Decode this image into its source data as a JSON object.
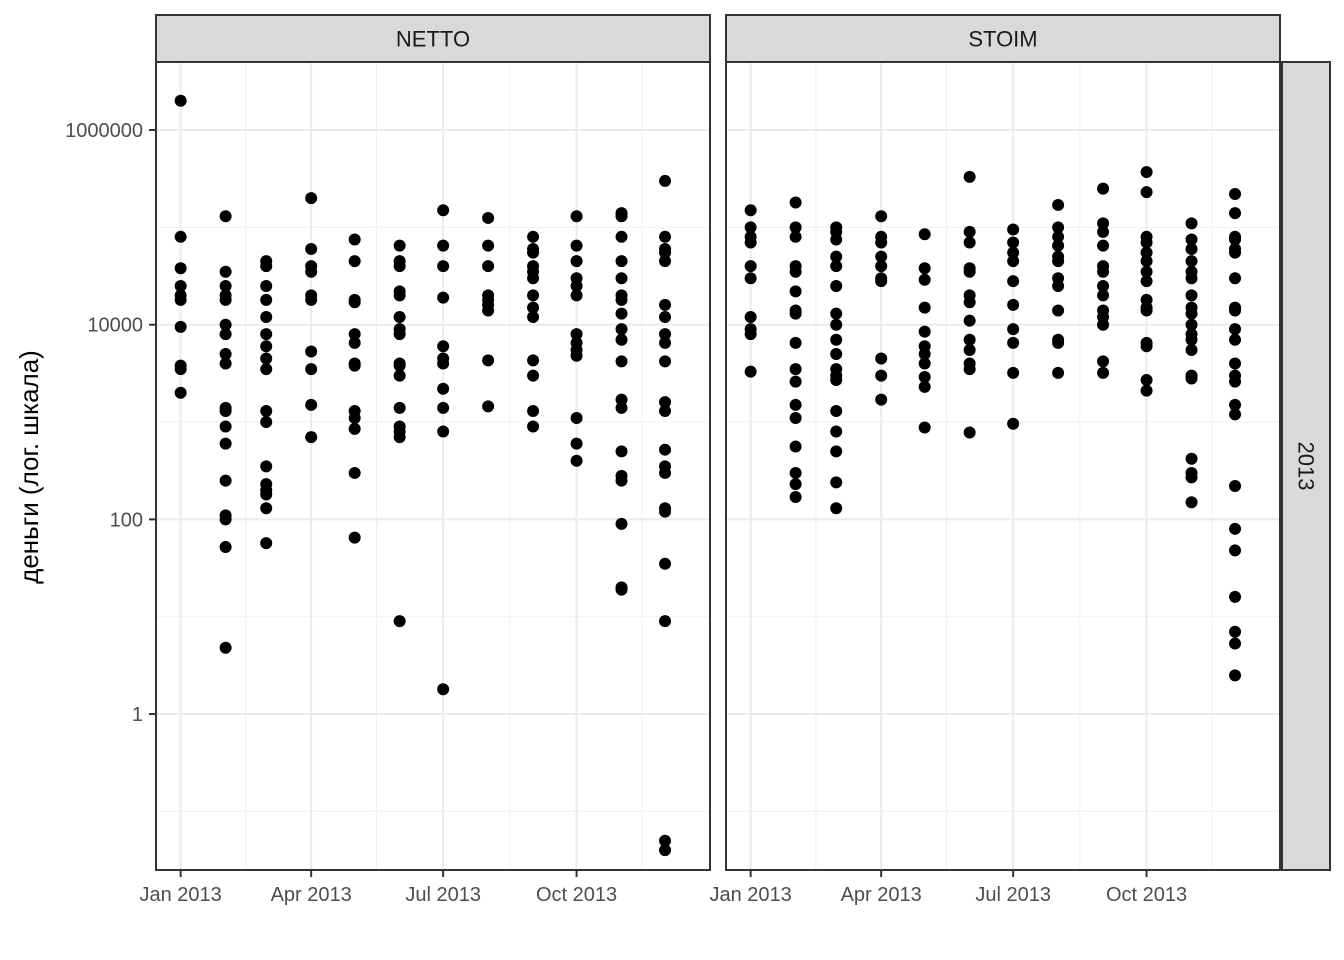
{
  "chart_data": {
    "type": "scatter",
    "facets": [
      "NETTO",
      "STOIM"
    ],
    "row_strip": "2013",
    "ylabel": "деньги (лог. шкала)",
    "xlabel": "",
    "y_scale": "log10",
    "ylim": [
      0.025,
      5000000
    ],
    "xlim": [
      "2012-12-15",
      "2014-01-01"
    ],
    "y_ticks": [
      1,
      100,
      10000,
      1000000
    ],
    "y_tick_labels": [
      "1",
      "100",
      "10000",
      "1000000"
    ],
    "x_ticks": [
      "2013-01-01",
      "2013-04-01",
      "2013-07-01",
      "2013-10-01"
    ],
    "x_tick_labels": [
      "Jan 2013",
      "Apr 2013",
      "Jul 2013",
      "Oct 2013"
    ],
    "grid": true,
    "point_color": "#000000",
    "series": [
      {
        "facet": "NETTO",
        "points": [
          {
            "x": "2013-01-01",
            "y": [
              2000000,
              80000,
              38000,
              25000,
              20000,
              18000,
              9500,
              3800,
              3500,
              2000
            ]
          },
          {
            "x": "2013-02-01",
            "y": [
              130000,
              35000,
              25000,
              20000,
              18000,
              10000,
              8000,
              5000,
              4000,
              1400,
              1300,
              900,
              600,
              250,
              110,
              100,
              52,
              4.8
            ]
          },
          {
            "x": "2013-03-01",
            "y": [
              45000,
              40000,
              25000,
              18000,
              12000,
              8000,
              6000,
              4500,
              3500,
              1300,
              1000,
              350,
              230,
              200,
              180,
              130,
              57
            ]
          },
          {
            "x": "2013-04-01",
            "y": [
              200000,
              60000,
              40000,
              35000,
              20000,
              18000,
              5300,
              3500,
              1500,
              700
            ]
          },
          {
            "x": "2013-05-01",
            "y": [
              75000,
              45000,
              18000,
              17000,
              8000,
              6500,
              4000,
              3800,
              1300,
              1100,
              850,
              300,
              65
            ]
          },
          {
            "x": "2013-06-01",
            "y": [
              65000,
              45000,
              40000,
              22000,
              20000,
              12000,
              9000,
              8000,
              4000,
              3800,
              3000,
              1400,
              900,
              800,
              700,
              9
            ]
          },
          {
            "x": "2013-07-01",
            "y": [
              150000,
              65000,
              40000,
              19000,
              6000,
              4500,
              4000,
              2200,
              1400,
              800,
              1.8
            ]
          },
          {
            "x": "2013-08-01",
            "y": [
              125000,
              65000,
              40000,
              20000,
              18000,
              16000,
              14000,
              4300,
              1450
            ]
          },
          {
            "x": "2013-09-01",
            "y": [
              80000,
              60000,
              55000,
              40000,
              35000,
              30000,
              20000,
              15000,
              12000,
              4300,
              3000,
              1300,
              900
            ]
          },
          {
            "x": "2013-10-01",
            "y": [
              130000,
              65000,
              45000,
              30000,
              25000,
              20000,
              8000,
              6500,
              5500,
              4800,
              1100,
              600,
              400
            ]
          },
          {
            "x": "2013-11-01",
            "y": [
              140000,
              130000,
              80000,
              45000,
              30000,
              20000,
              18000,
              13000,
              9000,
              7000,
              4200,
              1700,
              1400,
              500,
              280,
              250,
              90,
              20,
              19
            ]
          },
          {
            "x": "2013-12-01",
            "y": [
              300000,
              80000,
              60000,
              55000,
              45000,
              16000,
              12000,
              8000,
              6500,
              4200,
              1600,
              1300,
              520,
              350,
              300,
              130,
              120,
              35,
              9,
              0.05,
              0.04
            ]
          }
        ]
      },
      {
        "facet": "STOIM",
        "points": [
          {
            "x": "2013-01-01",
            "y": [
              150000,
              100000,
              80000,
              70000,
              40000,
              30000,
              12000,
              9000,
              8000,
              3300
            ]
          },
          {
            "x": "2013-02-01",
            "y": [
              180000,
              100000,
              80000,
              40000,
              35000,
              22000,
              14000,
              13000,
              6500,
              3500,
              2600,
              1500,
              1100,
              560,
              300,
              230,
              170
            ]
          },
          {
            "x": "2013-03-01",
            "y": [
              100000,
              90000,
              75000,
              50000,
              40000,
              25000,
              13000,
              10000,
              7000,
              5000,
              3500,
              3000,
              2700,
              1300,
              800,
              500,
              240,
              130
            ]
          },
          {
            "x": "2013-04-01",
            "y": [
              130000,
              80000,
              70000,
              50000,
              40000,
              30000,
              28000,
              4500,
              3000,
              1700
            ]
          },
          {
            "x": "2013-05-01",
            "y": [
              85000,
              38000,
              29000,
              15000,
              8500,
              6000,
              5000,
              4000,
              2900,
              2300,
              880
            ]
          },
          {
            "x": "2013-06-01",
            "y": [
              330000,
              90000,
              70000,
              38000,
              35000,
              20000,
              17000,
              11000,
              7000,
              5500,
              4000,
              3500,
              780
            ]
          },
          {
            "x": "2013-07-01",
            "y": [
              95000,
              70000,
              55000,
              45000,
              28000,
              16000,
              9000,
              6500,
              3200,
              960
            ]
          },
          {
            "x": "2013-08-01",
            "y": [
              170000,
              100000,
              80000,
              65000,
              50000,
              45000,
              30000,
              25000,
              14000,
              7000,
              6500,
              3200
            ]
          },
          {
            "x": "2013-09-01",
            "y": [
              250000,
              110000,
              90000,
              65000,
              40000,
              35000,
              25000,
              20000,
              14000,
              12000,
              10000,
              4200,
              3200
            ]
          },
          {
            "x": "2013-10-01",
            "y": [
              370000,
              230000,
              80000,
              70000,
              55000,
              45000,
              35000,
              28000,
              18000,
              15000,
              14000,
              6500,
              6000,
              2700,
              2100
            ]
          },
          {
            "x": "2013-11-01",
            "y": [
              110000,
              75000,
              60000,
              45000,
              35000,
              30000,
              20000,
              15000,
              13000,
              10000,
              8000,
              7000,
              5500,
              3000,
              2800,
              420,
              300,
              270,
              150
            ]
          },
          {
            "x": "2013-12-01",
            "y": [
              220000,
              140000,
              80000,
              75000,
              60000,
              55000,
              30000,
              15000,
              14000,
              9000,
              7000,
              4000,
              3000,
              2600,
              1500,
              1200,
              220,
              80,
              48,
              16,
              7,
              5.3,
              2.5
            ]
          }
        ]
      }
    ]
  }
}
